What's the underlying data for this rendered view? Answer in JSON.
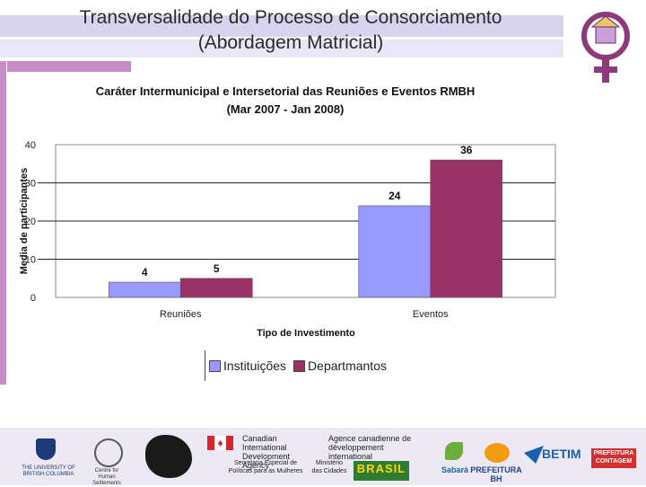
{
  "slide": {
    "title_line1": "Transversalidade do Processo de Consorciamento",
    "title_line2": "(Abordagem Matricial)"
  },
  "chart_data": {
    "type": "bar",
    "title": "Caráter Intermunicipal e Intersetorial das Reuniões e Eventos RMBH",
    "subtitle": "(Mar 2007 - Jan 2008)",
    "xlabel": "Tipo de Investimento",
    "ylabel": "Media de participantes",
    "categories": [
      "Reuniões",
      "Eventos"
    ],
    "ylim": [
      0,
      40
    ],
    "yticks": [
      0,
      10,
      20,
      30,
      40
    ],
    "grid": "horizontal",
    "legend_position": "bottom",
    "series": [
      {
        "name": "Instituições",
        "values": [
          4,
          24
        ],
        "labels": [
          "4",
          "24"
        ],
        "color": "#9999ff"
      },
      {
        "name": "Departmantos",
        "values": [
          5,
          36
        ],
        "labels": [
          "5",
          "36"
        ],
        "color": "#993366"
      }
    ]
  },
  "sponsors": {
    "ubc": "THE UNIVERSITY OF BRITISH COLUMBIA",
    "circle_logo": "Centre for Human Settlements",
    "cida_en": "Canadian International Development Agency",
    "cida_fr": "Agence canadienne de développement international",
    "secretaria": "Secretaria Especial de Políticas para as Mulheres",
    "ministerio": "Ministério das Cidades",
    "brasil": "BRASIL",
    "sabara": "Sabará",
    "pbh": "PREFEITURA BH",
    "betim": "BETIM",
    "contagem": "PREFEITURA CONTAGEM"
  }
}
